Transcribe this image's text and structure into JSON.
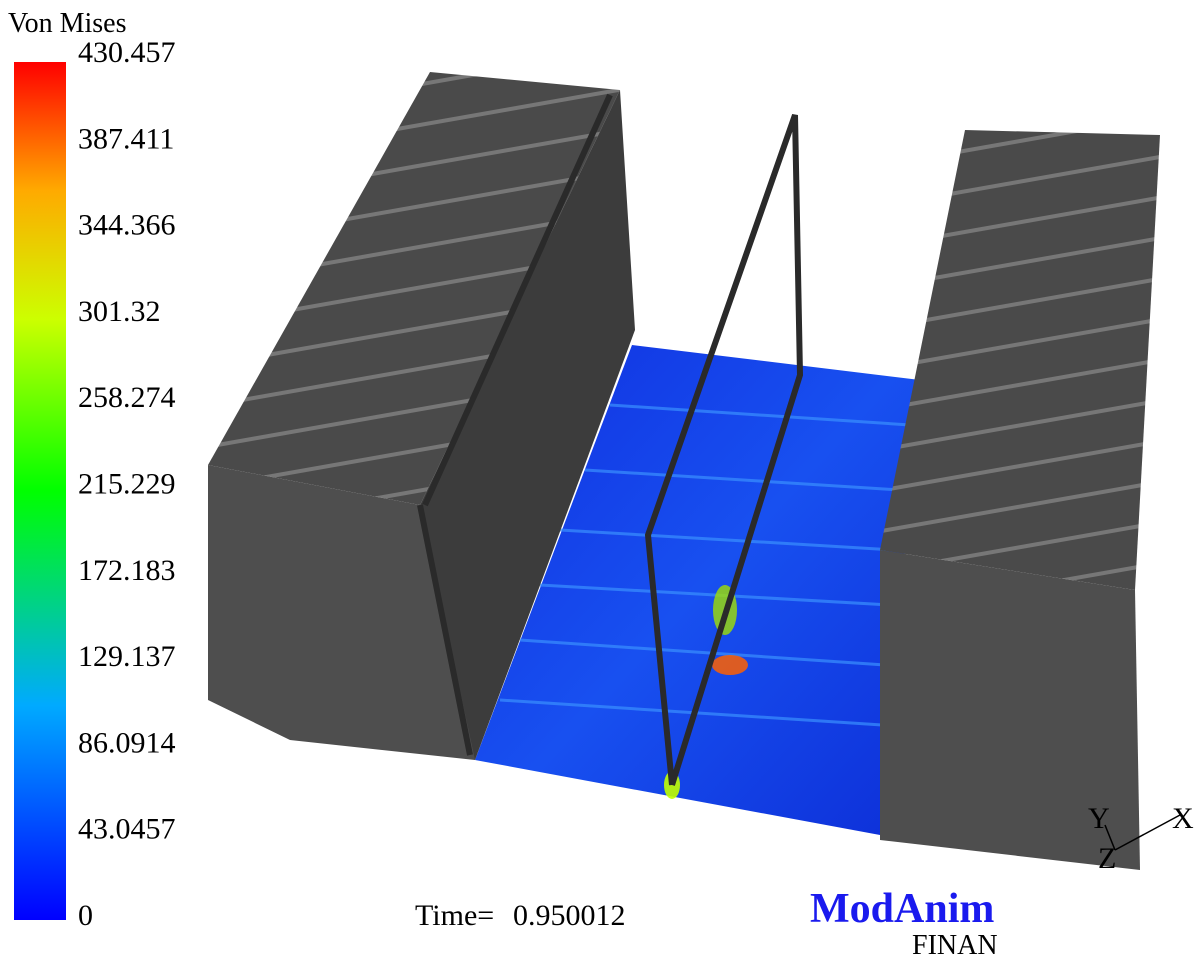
{
  "legend": {
    "title": "Von Mises",
    "ticks": [
      "430.457",
      "387.411",
      "344.366",
      "301.32",
      "258.274",
      "215.229",
      "172.183",
      "129.137",
      "86.0914",
      "43.0457",
      "0"
    ]
  },
  "time": {
    "label": "Time=",
    "value": "0.950012"
  },
  "logo": {
    "title": "ModAnim",
    "subtitle": "FINAN"
  },
  "axes": {
    "y": "Y",
    "x": "X",
    "z": "Z"
  }
}
